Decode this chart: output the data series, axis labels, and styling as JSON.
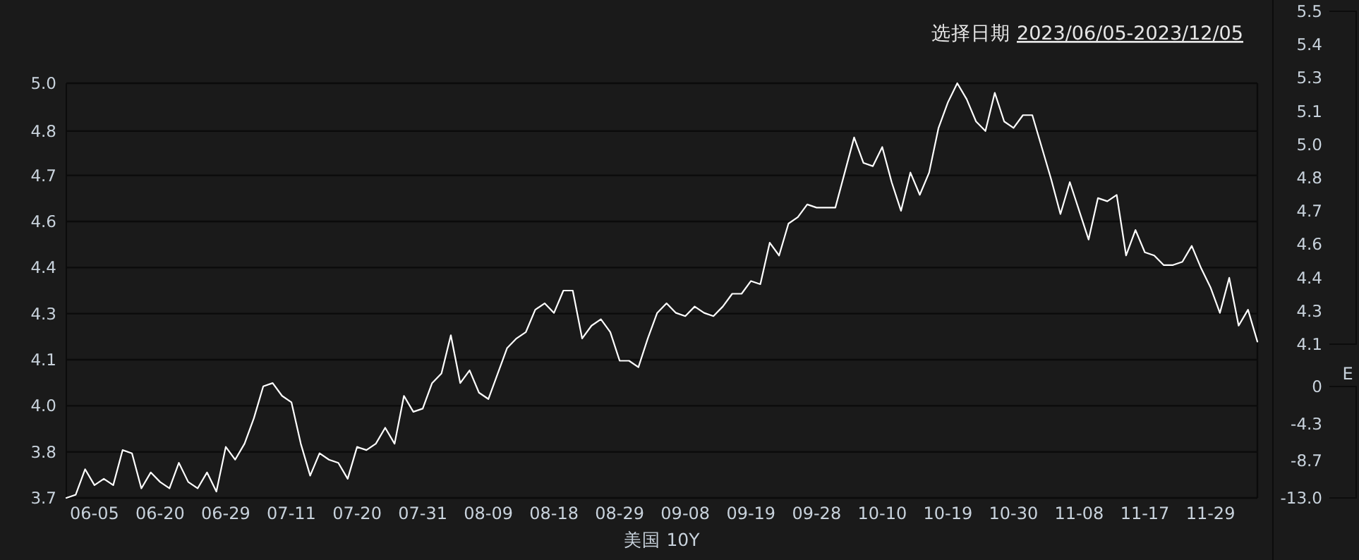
{
  "chart_data": [
    {
      "type": "line",
      "title": "选择日期",
      "subtitle": "2023/06/05-2023/12/05",
      "xlabel": "美国 10Y",
      "grid": "y",
      "ylim": [
        3.7,
        5.0
      ],
      "yticks": [
        {
          "value": 3.7,
          "label": "3.7"
        },
        {
          "value": 3.8444,
          "label": "3.8"
        },
        {
          "value": 3.9889,
          "label": "4.0"
        },
        {
          "value": 4.1333,
          "label": "4.1"
        },
        {
          "value": 4.2778,
          "label": "4.3"
        },
        {
          "value": 4.4222,
          "label": "4.4"
        },
        {
          "value": 4.5667,
          "label": "4.6"
        },
        {
          "value": 4.7111,
          "label": "4.7"
        },
        {
          "value": 4.85,
          "label": "4.8"
        },
        {
          "value": 5.0,
          "label": "5.0"
        }
      ],
      "categories": [
        null,
        null,
        null,
        "06-05",
        null,
        null,
        null,
        null,
        null,
        null,
        "06-20",
        null,
        null,
        null,
        null,
        null,
        null,
        "06-29",
        null,
        null,
        null,
        null,
        null,
        null,
        "07-11",
        null,
        null,
        null,
        null,
        null,
        null,
        "07-20",
        null,
        null,
        null,
        null,
        null,
        null,
        "07-31",
        null,
        null,
        null,
        null,
        null,
        null,
        "08-09",
        null,
        null,
        null,
        null,
        null,
        null,
        "08-18",
        null,
        null,
        null,
        null,
        null,
        null,
        "08-29",
        null,
        null,
        null,
        null,
        null,
        null,
        "09-08",
        null,
        null,
        null,
        null,
        null,
        null,
        "09-19",
        null,
        null,
        null,
        null,
        null,
        null,
        "09-28",
        null,
        null,
        null,
        null,
        null,
        null,
        "10-10",
        null,
        null,
        null,
        null,
        null,
        null,
        "10-19",
        null,
        null,
        null,
        null,
        null,
        null,
        "10-30",
        null,
        null,
        null,
        null,
        null,
        null,
        "11-08",
        null,
        null,
        null,
        null,
        null,
        null,
        "11-17",
        null,
        null,
        null,
        null,
        null,
        null,
        "11-29",
        null,
        null,
        null,
        null,
        null
      ],
      "series": [
        {
          "color": "#ffffff",
          "values": [
            3.7,
            3.71,
            3.79,
            3.74,
            3.76,
            3.74,
            3.85,
            3.84,
            3.73,
            3.78,
            3.75,
            3.73,
            3.81,
            3.75,
            3.73,
            3.78,
            3.72,
            3.86,
            3.82,
            3.87,
            3.95,
            4.05,
            4.06,
            4.02,
            4.0,
            3.87,
            3.77,
            3.84,
            3.82,
            3.81,
            3.76,
            3.86,
            3.85,
            3.87,
            3.92,
            3.87,
            4.02,
            3.97,
            3.98,
            4.06,
            4.09,
            4.21,
            4.06,
            4.1,
            4.03,
            4.01,
            4.09,
            4.17,
            4.2,
            4.22,
            4.29,
            4.31,
            4.28,
            4.35,
            4.35,
            4.2,
            4.24,
            4.26,
            4.22,
            4.13,
            4.13,
            4.11,
            4.2,
            4.28,
            4.31,
            4.28,
            4.27,
            4.3,
            4.28,
            4.27,
            4.3,
            4.34,
            4.34,
            4.38,
            4.37,
            4.5,
            4.46,
            4.56,
            4.58,
            4.62,
            4.61,
            4.61,
            4.61,
            4.72,
            4.83,
            4.75,
            4.74,
            4.8,
            4.69,
            4.6,
            4.72,
            4.65,
            4.72,
            4.86,
            4.94,
            5.0,
            4.95,
            4.88,
            4.85,
            4.97,
            4.88,
            4.86,
            4.9,
            4.9,
            4.8,
            4.7,
            4.59,
            4.69,
            4.6,
            4.51,
            4.64,
            4.63,
            4.65,
            4.46,
            4.54,
            4.47,
            4.46,
            4.43,
            4.43,
            4.44,
            4.49,
            4.42,
            4.36,
            4.28,
            4.39,
            4.24,
            4.29,
            4.19
          ]
        }
      ]
    },
    {
      "type": "other",
      "annotations": [
        "5.5",
        "5.4",
        "5.3",
        "5.1",
        "5.0",
        "4.8",
        "4.7",
        "4.6",
        "4.4",
        "4.3",
        "4.1"
      ]
    },
    {
      "type": "other",
      "ylabel": "E",
      "annotations": [
        "0",
        "-4.3",
        "-8.7",
        "-13.0"
      ]
    }
  ]
}
